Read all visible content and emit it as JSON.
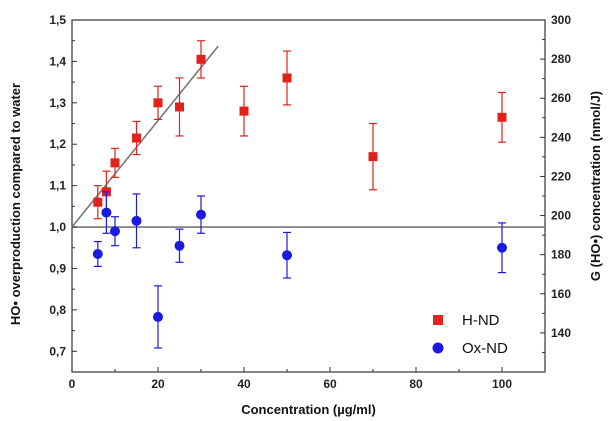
{
  "chart_data": {
    "type": "scatter",
    "xlabel": "Concentration (µg/ml)",
    "ylabel": "HO• overproduction compared to water",
    "y2label": "G (HO•) concentration (nmol/J)",
    "xlim": [
      0,
      110
    ],
    "ylim": [
      0.65,
      1.5
    ],
    "y2lim": [
      120,
      300
    ],
    "xticks": [
      "0",
      "20",
      "40",
      "60",
      "80",
      "100"
    ],
    "yticks": [
      "0,7",
      "0,8",
      "0,9",
      "1,0",
      "1,1",
      "1,2",
      "1,3",
      "1,4",
      "1,5"
    ],
    "y2ticks": [
      "140",
      "160",
      "180",
      "200",
      "220",
      "240",
      "260",
      "280",
      "300"
    ],
    "grid": false,
    "legend_position": "bottom-right",
    "series": [
      {
        "name": "H-ND",
        "color": "#e0221b",
        "marker": "square",
        "x": [
          6,
          8,
          10,
          15,
          20,
          25,
          30,
          40,
          50,
          70,
          100
        ],
        "y": [
          1.06,
          1.085,
          1.155,
          1.215,
          1.3,
          1.29,
          1.405,
          1.28,
          1.36,
          1.17,
          1.265
        ],
        "yerr": [
          0.04,
          0.05,
          0.035,
          0.04,
          0.04,
          0.07,
          0.045,
          0.06,
          0.065,
          0.08,
          0.06
        ]
      },
      {
        "name": "Ox-ND",
        "color": "#1a1ae0",
        "marker": "circle",
        "x": [
          6,
          8,
          10,
          15,
          20,
          25,
          30,
          50,
          100
        ],
        "y": [
          0.935,
          1.035,
          0.99,
          1.015,
          0.783,
          0.955,
          1.03,
          0.932,
          0.95
        ],
        "yerr": [
          0.03,
          0.05,
          0.035,
          0.065,
          0.075,
          0.04,
          0.045,
          0.055,
          0.06
        ]
      }
    ],
    "reference_lines": [
      {
        "kind": "horizontal",
        "y": 1.0,
        "color": "#777777"
      },
      {
        "kind": "fit",
        "x": [
          0,
          34
        ],
        "y": [
          1.0,
          1.437
        ],
        "color": "#777777"
      }
    ]
  }
}
